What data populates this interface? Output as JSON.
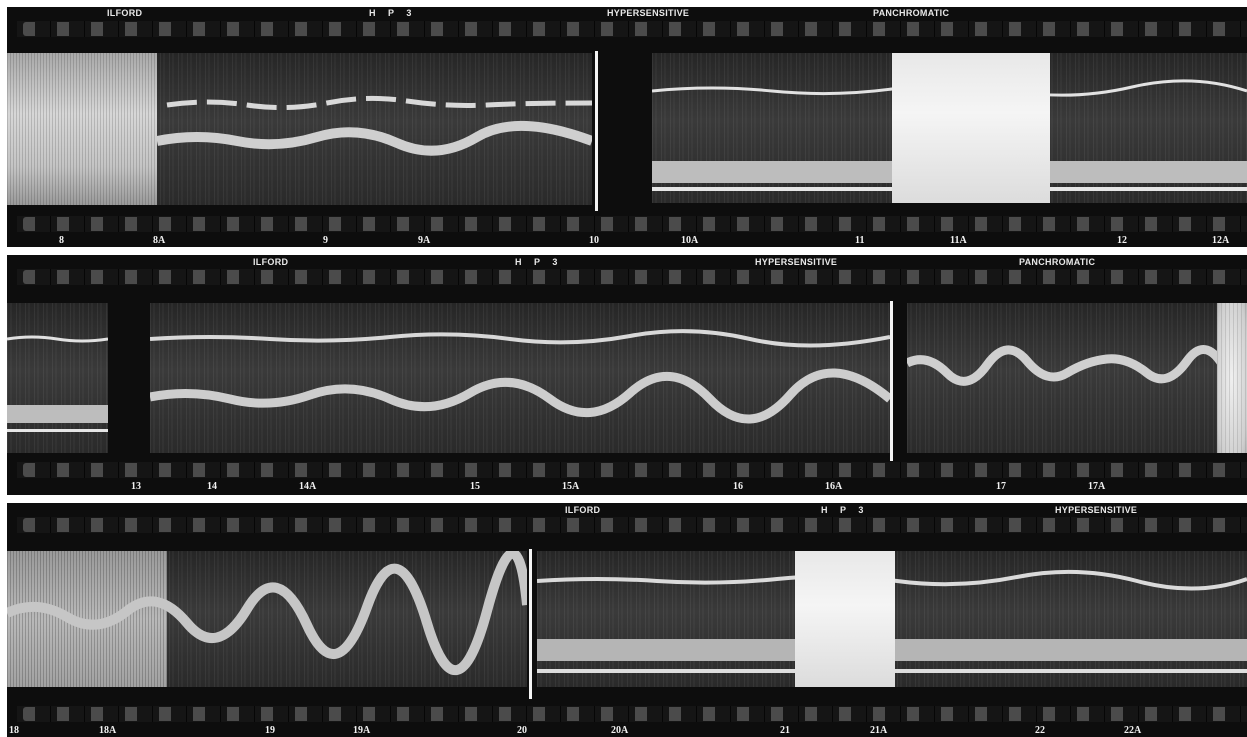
{
  "strips": [
    {
      "edge_labels": [
        "ILFORD",
        "H P 3",
        "HYPERSENSITIVE",
        "PANCHROMATIC"
      ],
      "frame_numbers": [
        "8",
        "8A",
        "9",
        "9A",
        "10",
        "10A",
        "11",
        "11A",
        "12",
        "12A"
      ]
    },
    {
      "edge_labels": [
        "ILFORD",
        "H P 3",
        "HYPERSENSITIVE",
        "PANCHROMATIC"
      ],
      "frame_numbers": [
        "13",
        "14",
        "14A",
        "15",
        "15A",
        "16",
        "16A",
        "17",
        "17A"
      ]
    },
    {
      "edge_labels": [
        "ILFORD",
        "H P 3",
        "HYPERSENSITIVE"
      ],
      "frame_numbers": [
        "18",
        "18A",
        "19",
        "19A",
        "20",
        "20A",
        "21",
        "21A",
        "22",
        "22A"
      ]
    }
  ]
}
